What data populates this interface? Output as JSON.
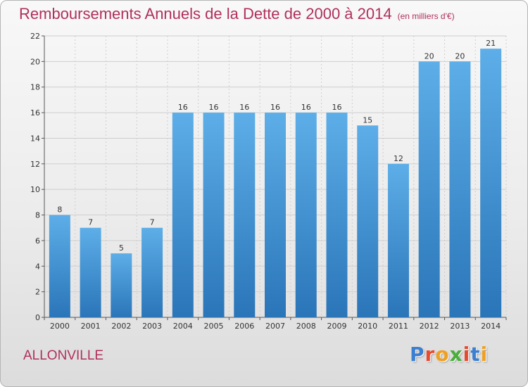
{
  "chart_data": {
    "type": "bar",
    "title": "Remboursements Annuels de la Dette de 2000 à 2014",
    "subtitle": "(en milliers d'€)",
    "categories": [
      "2000",
      "2001",
      "2002",
      "2003",
      "2004",
      "2005",
      "2006",
      "2007",
      "2008",
      "2009",
      "2010",
      "2011",
      "2012",
      "2013",
      "2014"
    ],
    "values": [
      8,
      7,
      5,
      7,
      16,
      16,
      16,
      16,
      16,
      16,
      15,
      12,
      20,
      20,
      21
    ],
    "xlabel": "",
    "ylabel": "",
    "ylim": [
      0,
      22
    ],
    "yticks": [
      0,
      2,
      4,
      6,
      8,
      10,
      12,
      14,
      16,
      18,
      20,
      22
    ],
    "grid": true,
    "data_labels": true,
    "bar_color_top": "#5daee8",
    "bar_color_bottom": "#2a75b8"
  },
  "footer": {
    "commune": "ALLONVILLE",
    "logo_letters": [
      "P",
      "r",
      "o",
      "x",
      "i",
      "t",
      "i"
    ],
    "logo_colors": [
      "#3b7fd0",
      "#e84a2e",
      "#f0a020",
      "#4aae3a",
      "#e84a2e",
      "#3b7fd0",
      "#f0a020"
    ]
  },
  "colors": {
    "title": "#b0305a",
    "grid": "#cfcfcf",
    "axis": "#555555"
  }
}
